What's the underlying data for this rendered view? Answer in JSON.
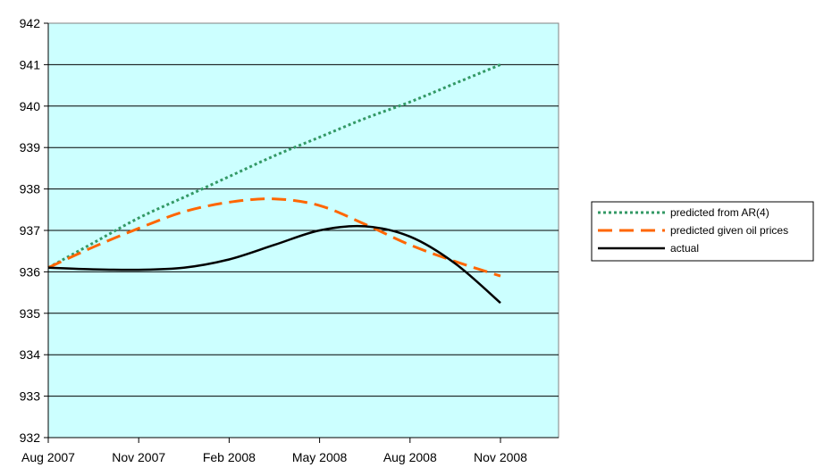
{
  "chart_data": {
    "type": "line",
    "title": "",
    "xlabel": "",
    "ylabel": "",
    "ylim": [
      932,
      942
    ],
    "yticks": [
      "932",
      "933",
      "934",
      "935",
      "936",
      "937",
      "938",
      "939",
      "940",
      "941",
      "942"
    ],
    "x_tick_labels": [
      "Aug 2007",
      "Nov 2007",
      "Feb 2008",
      "May 2008",
      "Aug 2008",
      "Nov 2008"
    ],
    "grid": "horizontal",
    "plot_background": "#ccffff",
    "legend_position": "right",
    "x": [
      0,
      0.5,
      1,
      1.5,
      2,
      2.5,
      3,
      3.5,
      4,
      4.5,
      5
    ],
    "series": [
      {
        "name": "predicted from AR(4)",
        "style": "dotted",
        "color": "#339966",
        "values": [
          936.1,
          936.7,
          937.3,
          937.8,
          938.3,
          938.8,
          939.25,
          939.7,
          940.1,
          940.55,
          941.0
        ]
      },
      {
        "name": "predicted given oil prices",
        "style": "dashed",
        "color": "#ff6600",
        "values": [
          936.1,
          936.6,
          937.05,
          937.45,
          937.68,
          937.76,
          937.6,
          937.15,
          936.65,
          936.25,
          935.9
        ]
      },
      {
        "name": "actual",
        "style": "solid",
        "color": "#000000",
        "values": [
          936.1,
          936.06,
          936.05,
          936.1,
          936.3,
          936.65,
          937.0,
          937.1,
          936.85,
          936.2,
          935.25
        ]
      }
    ]
  }
}
